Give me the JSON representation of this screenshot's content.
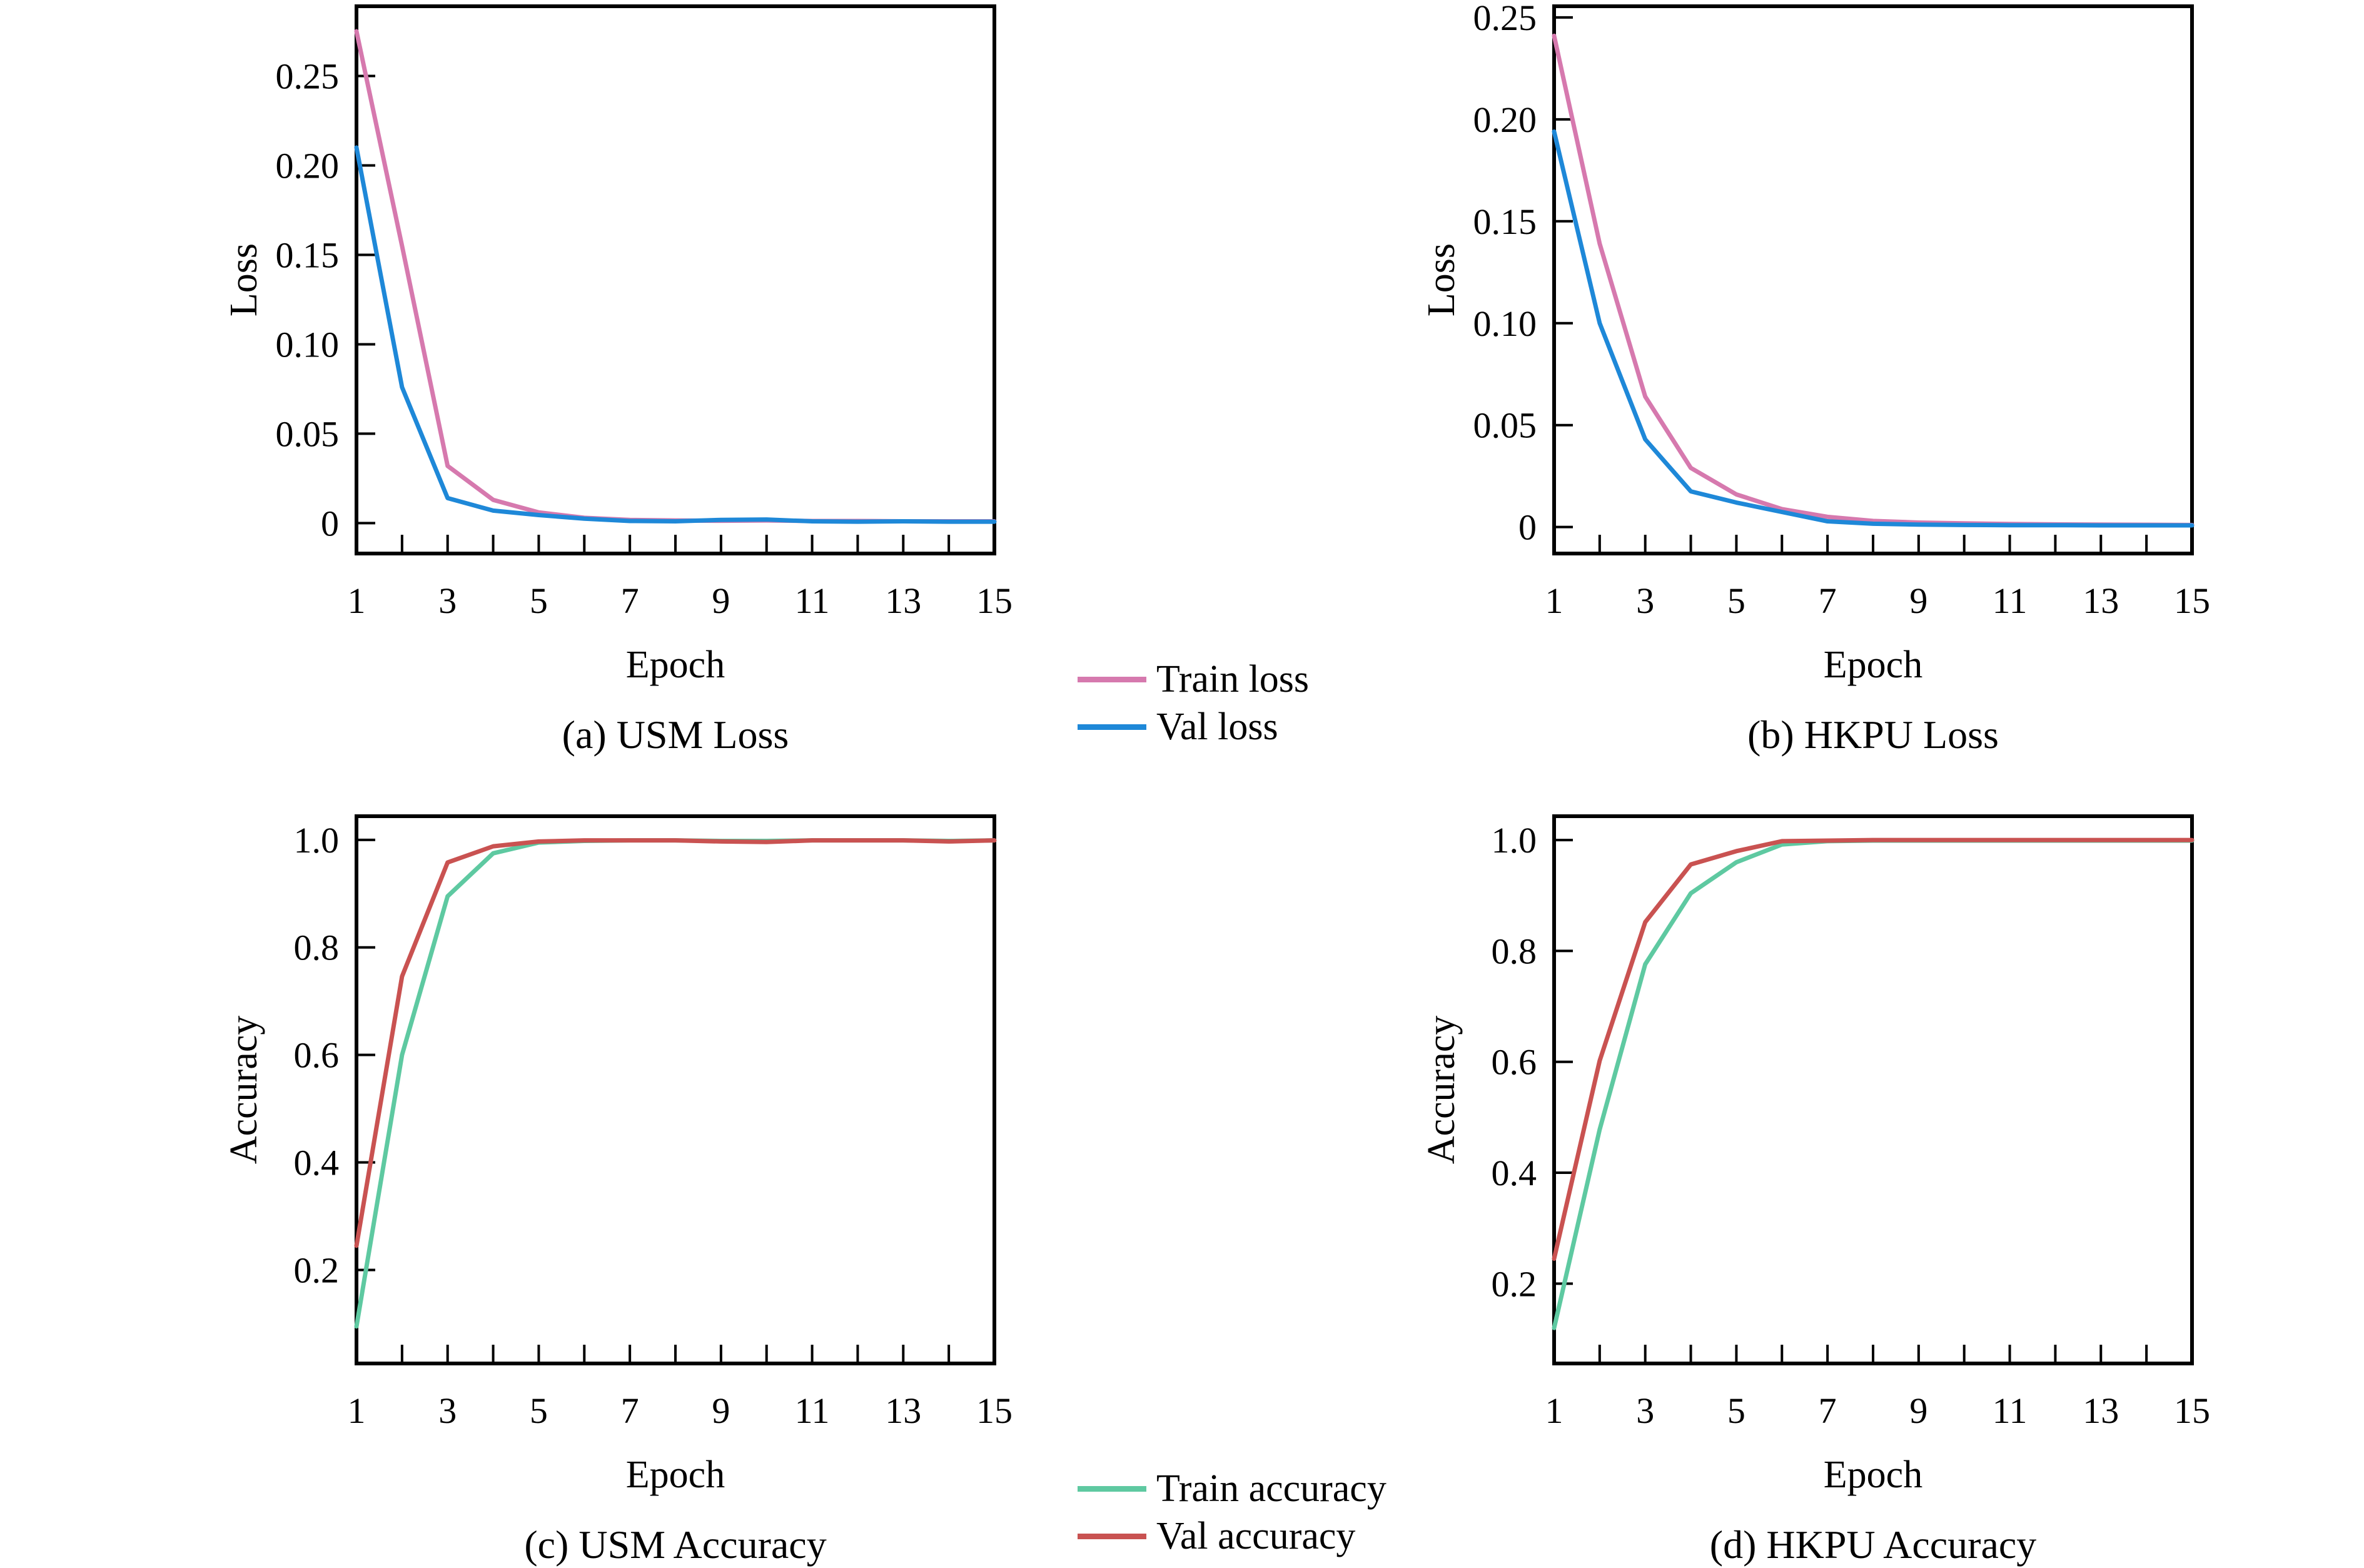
{
  "figure": {
    "background": "#ffffff",
    "axis_color": "#000000"
  },
  "colors": {
    "train_loss": "#d679ae",
    "val_loss": "#1e88d8",
    "train_accuracy": "#5ec9a1",
    "val_accuracy": "#c95251"
  },
  "legends": [
    {
      "id": "legend-loss",
      "items": [
        {
          "label": "Train loss",
          "color": "train_loss"
        },
        {
          "label": "Val loss",
          "color": "val_loss"
        }
      ]
    },
    {
      "id": "legend-accuracy",
      "items": [
        {
          "label": "Train accuracy",
          "color": "train_accuracy"
        },
        {
          "label": "Val accuracy",
          "color": "val_accuracy"
        }
      ]
    }
  ],
  "chart_data": [
    {
      "type": "line",
      "caption": "(a) USM Loss",
      "xlabel": "Epoch",
      "ylabel": "Loss",
      "x": [
        1,
        2,
        3,
        4,
        5,
        6,
        7,
        8,
        9,
        10,
        11,
        12,
        13,
        14,
        15
      ],
      "xlim": [
        1,
        15
      ],
      "ylim": [
        -0.017,
        0.289
      ],
      "grid": false,
      "y_ticks": [
        0,
        0.05,
        0.1,
        0.15,
        0.2,
        0.25
      ],
      "y_tick_labels": [
        "0",
        "0.05",
        "0.10",
        "0.15",
        "0.20",
        "0.25"
      ],
      "x_tick_labels": [
        {
          "v": 1,
          "label": "1"
        },
        {
          "v": 3,
          "label": "3"
        },
        {
          "v": 5,
          "label": "5"
        },
        {
          "v": 7,
          "label": "7"
        },
        {
          "v": 9,
          "label": "9"
        },
        {
          "v": 11,
          "label": "11"
        },
        {
          "v": 13,
          "label": "13"
        },
        {
          "v": 15,
          "label": "15"
        }
      ],
      "series": [
        {
          "name": "Train loss",
          "color": "train_loss",
          "values": [
            0.275,
            0.155,
            0.032,
            0.013,
            0.006,
            0.003,
            0.0018,
            0.0015,
            0.0013,
            0.0015,
            0.0012,
            0.0012,
            0.001,
            0.001,
            0.001
          ]
        },
        {
          "name": "Val loss",
          "color": "val_loss",
          "values": [
            0.21,
            0.076,
            0.014,
            0.007,
            0.0045,
            0.0025,
            0.0012,
            0.001,
            0.0018,
            0.002,
            0.001,
            0.0008,
            0.001,
            0.0008,
            0.0008
          ]
        }
      ]
    },
    {
      "type": "line",
      "caption": "(b) HKPU Loss",
      "xlabel": "Epoch",
      "ylabel": "Loss",
      "x": [
        1,
        2,
        3,
        4,
        5,
        6,
        7,
        8,
        9,
        10,
        11,
        12,
        13,
        14,
        15
      ],
      "xlim": [
        1,
        15
      ],
      "ylim": [
        -0.013,
        0.2555
      ],
      "grid": false,
      "y_ticks": [
        0,
        0.05,
        0.1,
        0.15,
        0.2,
        0.25
      ],
      "y_tick_labels": [
        "0",
        "0.05",
        "0.10",
        "0.15",
        "0.20",
        "0.25"
      ],
      "x_tick_labels": [
        {
          "v": 1,
          "label": "1"
        },
        {
          "v": 3,
          "label": "3"
        },
        {
          "v": 5,
          "label": "5"
        },
        {
          "v": 7,
          "label": "7"
        },
        {
          "v": 9,
          "label": "9"
        },
        {
          "v": 11,
          "label": "11"
        },
        {
          "v": 13,
          "label": "13"
        },
        {
          "v": 15,
          "label": "15"
        }
      ],
      "series": [
        {
          "name": "Train loss",
          "color": "train_loss",
          "values": [
            0.241,
            0.139,
            0.064,
            0.029,
            0.016,
            0.0088,
            0.005,
            0.003,
            0.0022,
            0.0018,
            0.0015,
            0.0013,
            0.0012,
            0.0011,
            0.001
          ]
        },
        {
          "name": "Val loss",
          "color": "val_loss",
          "values": [
            0.194,
            0.1,
            0.043,
            0.0175,
            0.012,
            0.0074,
            0.0028,
            0.0016,
            0.0012,
            0.001,
            0.0009,
            0.0009,
            0.0008,
            0.0008,
            0.0008
          ]
        }
      ]
    },
    {
      "type": "line",
      "caption": "(c) USM Accuracy",
      "xlabel": "Epoch",
      "ylabel": "Accuracy",
      "x": [
        1,
        2,
        3,
        4,
        5,
        6,
        7,
        8,
        9,
        10,
        11,
        12,
        13,
        14,
        15
      ],
      "xlim": [
        1,
        15
      ],
      "ylim": [
        0.026,
        1.044
      ],
      "grid": false,
      "y_ticks": [
        0.2,
        0.4,
        0.6,
        0.8,
        1.0
      ],
      "y_tick_labels": [
        "0.2",
        "0.4",
        "0.6",
        "0.8",
        "1.0"
      ],
      "x_tick_labels": [
        {
          "v": 1,
          "label": "1"
        },
        {
          "v": 3,
          "label": "3"
        },
        {
          "v": 5,
          "label": "5"
        },
        {
          "v": 7,
          "label": "7"
        },
        {
          "v": 9,
          "label": "9"
        },
        {
          "v": 11,
          "label": "11"
        },
        {
          "v": 13,
          "label": "13"
        },
        {
          "v": 15,
          "label": "15"
        }
      ],
      "series": [
        {
          "name": "Train accuracy",
          "color": "train_accuracy",
          "values": [
            0.095,
            0.6,
            0.895,
            0.975,
            0.995,
            0.998,
            0.999,
            0.999,
            0.998,
            0.998,
            0.999,
            0.999,
            0.999,
            0.998,
            0.999
          ]
        },
        {
          "name": "Val accuracy",
          "color": "val_accuracy",
          "values": [
            0.245,
            0.746,
            0.958,
            0.988,
            0.997,
            0.999,
            0.999,
            0.999,
            0.997,
            0.996,
            0.999,
            0.999,
            0.999,
            0.997,
            0.999
          ]
        }
      ]
    },
    {
      "type": "line",
      "caption": "(d) HKPU Accuracy",
      "xlabel": "Epoch",
      "ylabel": "Accuracy",
      "x": [
        1,
        2,
        3,
        4,
        5,
        6,
        7,
        8,
        9,
        10,
        11,
        12,
        13,
        14,
        15
      ],
      "xlim": [
        1,
        15
      ],
      "ylim": [
        0.056,
        1.043
      ],
      "grid": false,
      "y_ticks": [
        0.2,
        0.4,
        0.6,
        0.8,
        1.0
      ],
      "y_tick_labels": [
        "0.2",
        "0.4",
        "0.6",
        "0.8",
        "1.0"
      ],
      "x_tick_labels": [
        {
          "v": 1,
          "label": "1"
        },
        {
          "v": 3,
          "label": "3"
        },
        {
          "v": 5,
          "label": "5"
        },
        {
          "v": 7,
          "label": "7"
        },
        {
          "v": 9,
          "label": "9"
        },
        {
          "v": 11,
          "label": "11"
        },
        {
          "v": 13,
          "label": "13"
        },
        {
          "v": 15,
          "label": "15"
        }
      ],
      "series": [
        {
          "name": "Train accuracy",
          "color": "train_accuracy",
          "values": [
            0.12,
            0.478,
            0.776,
            0.904,
            0.96,
            0.992,
            0.998,
            0.999,
            0.999,
            0.999,
            0.999,
            0.999,
            0.999,
            0.999,
            0.999
          ]
        },
        {
          "name": "Val accuracy",
          "color": "val_accuracy",
          "values": [
            0.245,
            0.602,
            0.852,
            0.956,
            0.98,
            0.998,
            0.999,
            1.0,
            1.0,
            1.0,
            1.0,
            1.0,
            1.0,
            1.0,
            1.0
          ]
        }
      ]
    }
  ]
}
